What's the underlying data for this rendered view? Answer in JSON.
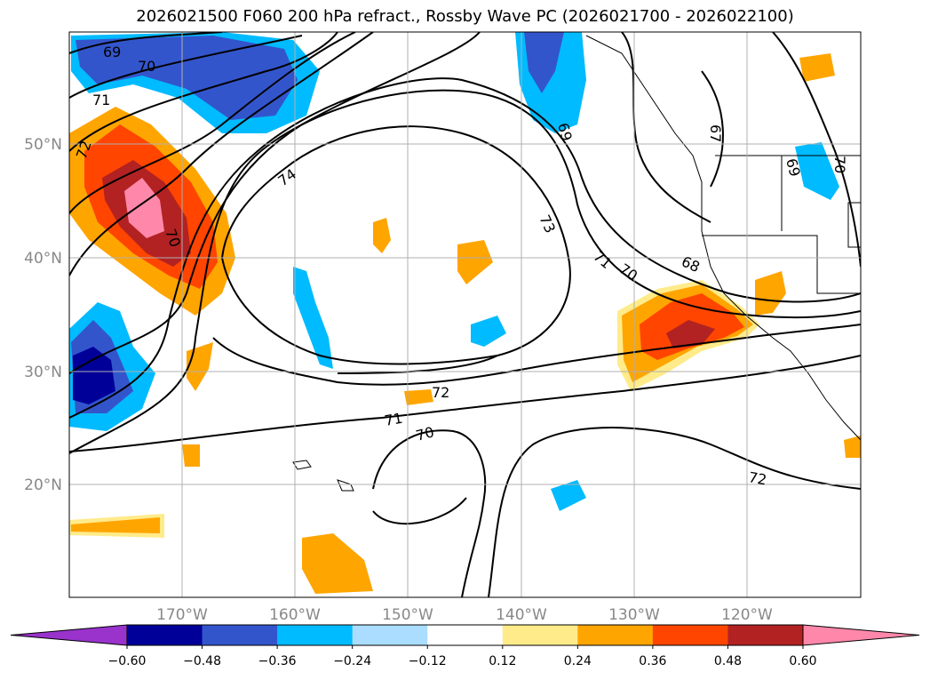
{
  "title": "2026021500 F060 200 hPa refract., Rossby Wave PC (2026021700 - 2026022100)",
  "map": {
    "lat_ticks": [
      "50°N",
      "40°N",
      "30°N",
      "20°N"
    ],
    "lon_ticks": [
      "170°W",
      "160°W",
      "150°W",
      "140°W",
      "130°W",
      "120°W"
    ],
    "grid": true
  },
  "contour_labels": [
    "69",
    "70",
    "71",
    "72",
    "70",
    "74",
    "73",
    "71",
    "70",
    "68",
    "69",
    "67",
    "69",
    "70",
    "72",
    "71",
    "70",
    "72"
  ],
  "colorbar": {
    "colors": [
      "#9933cc",
      "#000099",
      "#3355cc",
      "#00bbff",
      "#aaddff",
      "#ffffff",
      "#ffeb8a",
      "#ffa500",
      "#ff4500",
      "#b22222",
      "#ff88aa"
    ],
    "tick_labels": [
      "−0.60",
      "−0.48",
      "−0.36",
      "−0.24",
      "−0.12",
      "0.12",
      "0.24",
      "0.36",
      "0.48",
      "0.60"
    ],
    "extend": "both"
  }
}
